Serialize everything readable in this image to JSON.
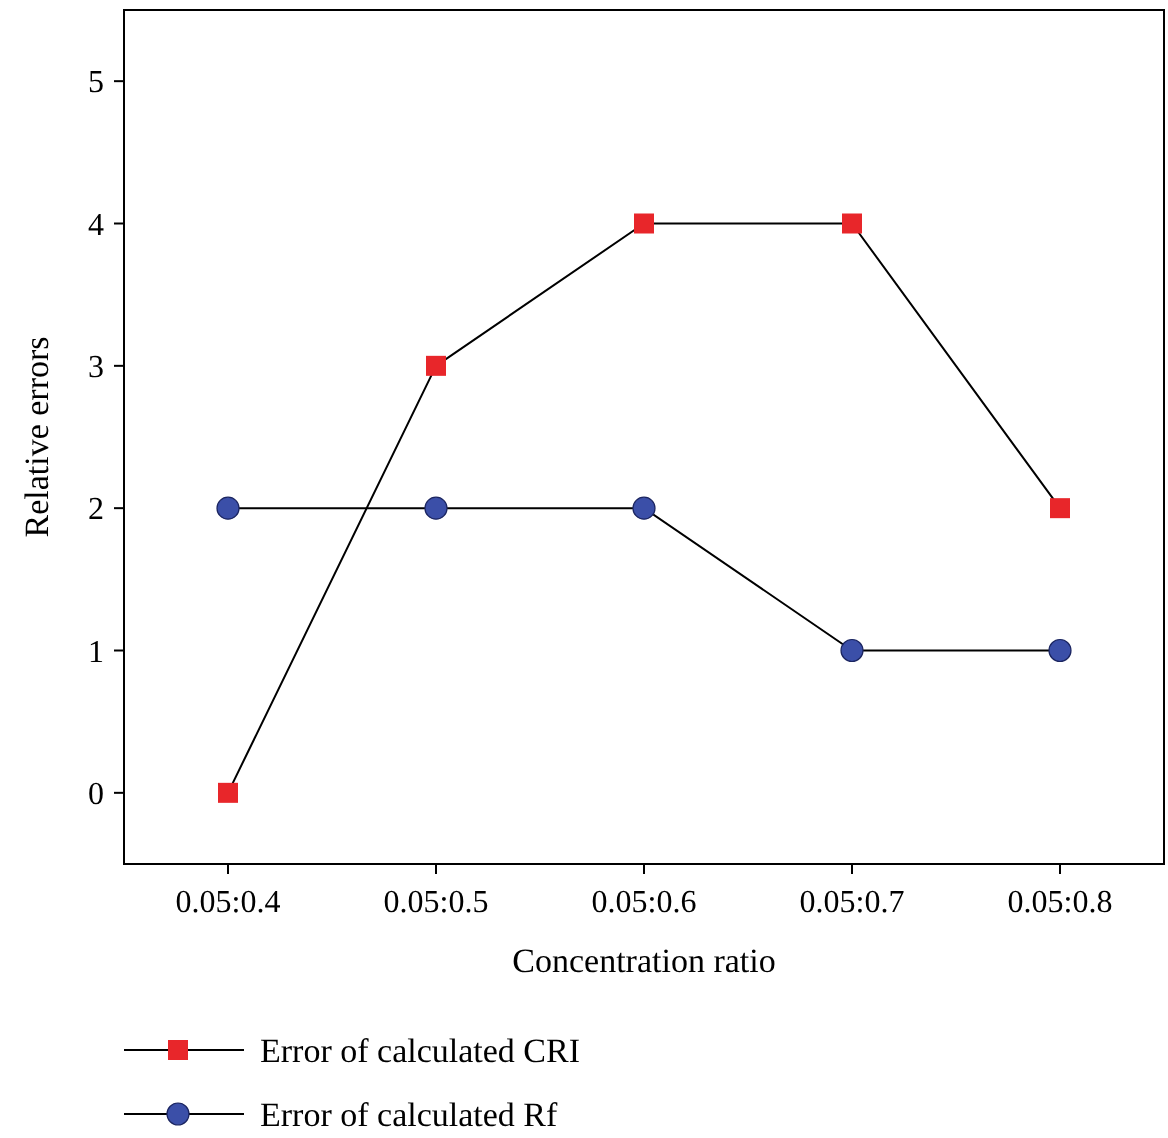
{
  "chart_data": {
    "type": "line",
    "xlabel": "Concentration ratio",
    "ylabel": "Relative errors",
    "categories": [
      "0.05:0.4",
      "0.05:0.5",
      "0.05:0.6",
      "0.05:0.7",
      "0.05:0.8"
    ],
    "series": [
      {
        "name": "Error of calculated CRI",
        "color": "#e8262a",
        "marker": "square",
        "values": [
          0,
          3,
          4,
          4,
          2
        ]
      },
      {
        "name": "Error of calculated Rf",
        "color": "#3b4fa8",
        "marker": "circle",
        "values": [
          2,
          2,
          2,
          1,
          1
        ]
      }
    ],
    "ylim": [
      -0.5,
      5.5
    ],
    "yticks": [
      0,
      1,
      2,
      3,
      4,
      5
    ],
    "grid": false,
    "legend": "bottom",
    "line_style": "solid"
  }
}
